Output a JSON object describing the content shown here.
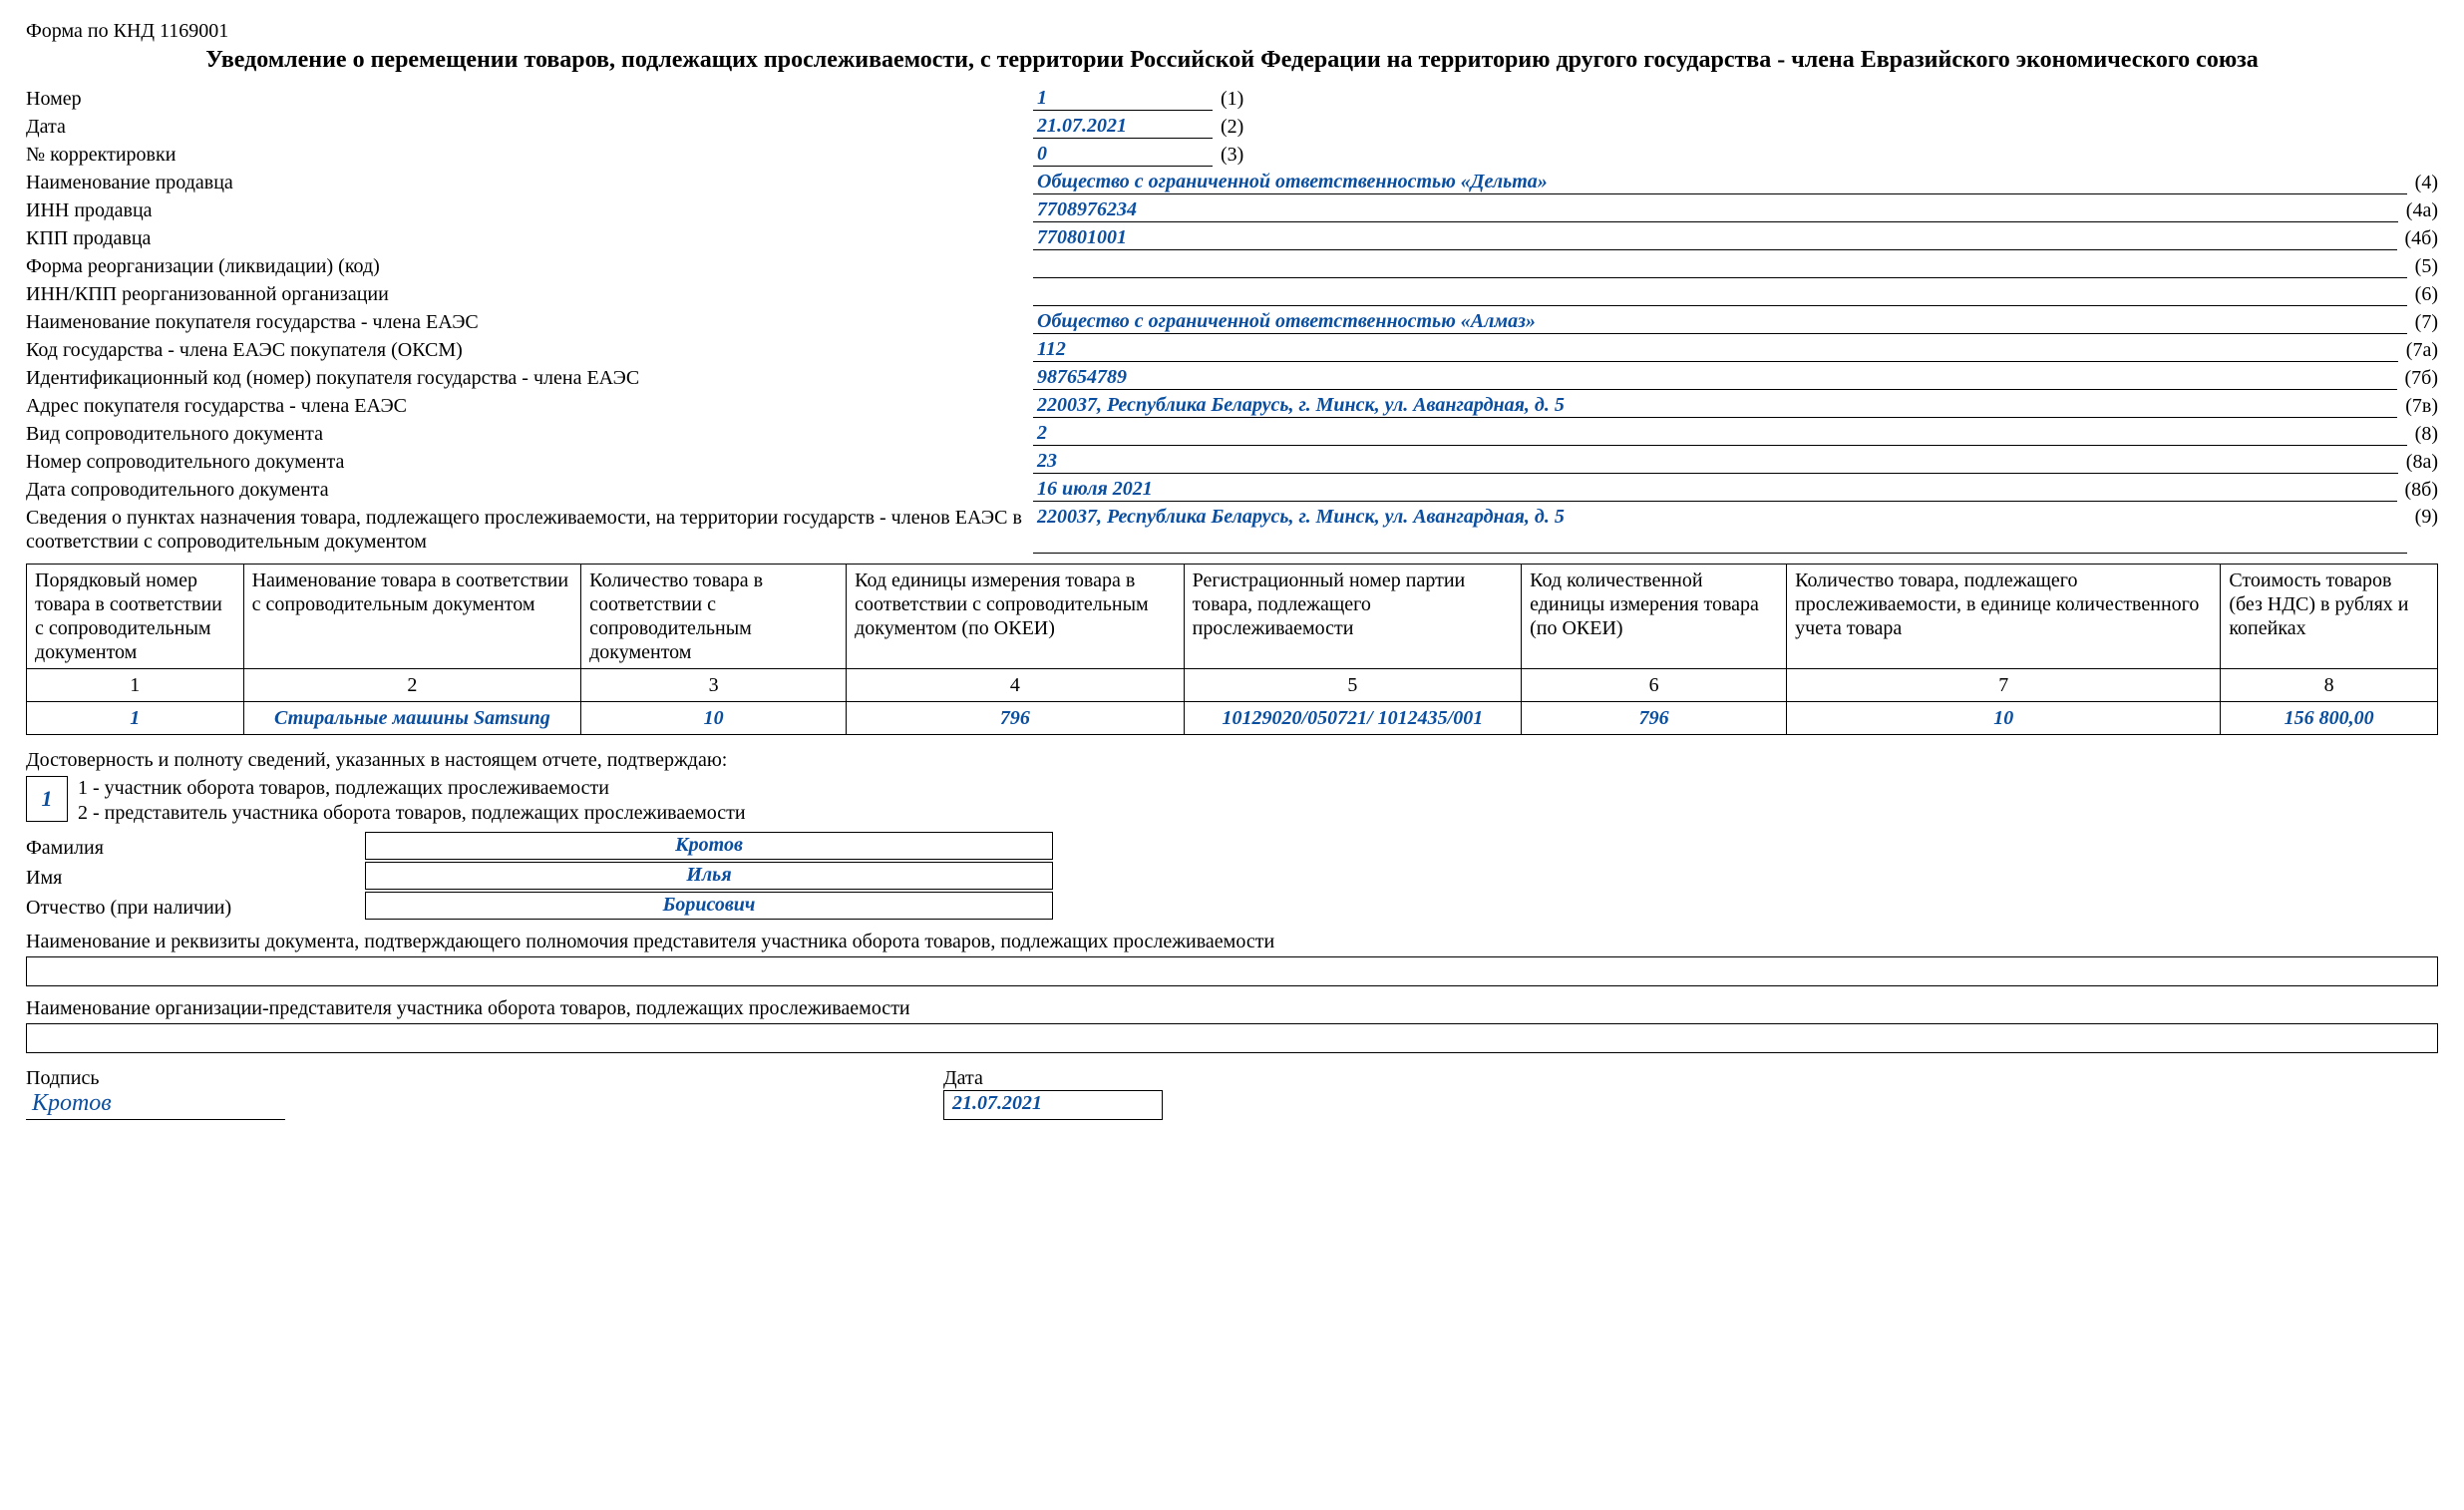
{
  "form_code": "Форма по КНД 1169001",
  "title": "Уведомление о перемещении товаров, подлежащих прослеживаемости, с территории Российской Федерации на территорию другого государства - члена Евразийского экономического союза",
  "fields": {
    "f1": {
      "label": "Номер",
      "value": "1",
      "tag": "(1)",
      "short": true
    },
    "f2": {
      "label": "Дата",
      "value": "21.07.2021",
      "tag": "(2)",
      "short": true
    },
    "f3": {
      "label": "№ корректировки",
      "value": "0",
      "tag": "(3)",
      "short": true
    },
    "f4": {
      "label": "Наименование продавца",
      "value": "Общество с ограниченной ответственностью «Дельта»",
      "tag": "(4)"
    },
    "f4a": {
      "label": "ИНН продавца",
      "value": "7708976234",
      "tag": "(4а)"
    },
    "f4b": {
      "label": "КПП продавца",
      "value": "770801001",
      "tag": "(4б)"
    },
    "f5": {
      "label": "Форма реорганизации (ликвидации) (код)",
      "value": "",
      "tag": "(5)"
    },
    "f6": {
      "label": "ИНН/КПП реорганизованной организации",
      "value": "",
      "tag": "(6)"
    },
    "f7": {
      "label": "Наименование покупателя государства - члена ЕАЭС",
      "value": "Общество с ограниченной ответственностью «Алмаз»",
      "tag": "(7)"
    },
    "f7a": {
      "label": "Код государства - члена ЕАЭС покупателя (ОКСМ)",
      "value": "112",
      "tag": "(7а)"
    },
    "f7b": {
      "label": "Идентификационный код (номер) покупателя государства - члена ЕАЭС",
      "value": "987654789",
      "tag": "(7б)"
    },
    "f7v": {
      "label": "Адрес покупателя государства - члена ЕАЭС",
      "value": "220037, Республика Беларусь, г. Минск, ул. Авангардная, д. 5",
      "tag": "(7в)"
    },
    "f8": {
      "label": "Вид сопроводительного документа",
      "value": "2",
      "tag": "(8)"
    },
    "f8a": {
      "label": "Номер сопроводительного документа",
      "value": "23",
      "tag": "(8а)"
    },
    "f8b": {
      "label": "Дата сопроводительного документа",
      "value": "16 июля 2021",
      "tag": "(8б)"
    },
    "f9": {
      "label": "Сведения о пунктах назначения товара, подлежащего прослеживаемости, на территории государств - членов ЕАЭС в соответствии с сопроводительным документом",
      "value": "220037, Республика Беларусь, г. Минск, ул. Авангард­ная, д. 5",
      "tag": "(9)"
    }
  },
  "table": {
    "headers": [
      "Порядковый номер товара в соответствии с сопроводи­тельным документом",
      "Наименование товара в соответствии с сопроводительным документом",
      "Количество товара в соответствии с сопроводительным документом",
      "Код единицы измерения товара в соответствии с сопроводительным доку­ментом (по ОКЕИ)",
      "Регистрационный номер партии товара, подлежащего прослеживаемости",
      "Код количественной единицы измерения товара (по ОКЕИ)",
      "Количество товара, подлежащего прослеживаемости, в единице количественного учета товара",
      "Стоимость товаров (без НДС) в рублях и копейках"
    ],
    "col_widths_pct": [
      9,
      14,
      11,
      14,
      14,
      11,
      18,
      9
    ],
    "numrow": [
      "1",
      "2",
      "3",
      "4",
      "5",
      "6",
      "7",
      "8"
    ],
    "rows": [
      {
        "c1": "1",
        "c2": "Стиральные машины Samsung",
        "c3": "10",
        "c4": "796",
        "c5": "10129020/050721/ 1012435/001",
        "c6": "796",
        "c7": "10",
        "c8": "156 800,00"
      }
    ]
  },
  "confirm": {
    "caption": "Достоверность и полноту сведений, указанных в настоящем отчете, подтверждаю:",
    "code": "1",
    "legend1": "1 - участник оборота товаров, подлежащих прослеживаемости",
    "legend2": "2 - представитель участника оборота товаров, подлежащих прослеживаемости",
    "last_name_label": "Фамилия",
    "last_name": "Кротов",
    "first_name_label": "Имя",
    "first_name": "Илья",
    "patronymic_label": "Отчество (при наличии)",
    "patronymic": "Борисович"
  },
  "auth_doc_caption": "Наименование и реквизиты документа, подтверждающего полномочия представителя участника оборота товаров, подлежащих прослеживаемости",
  "rep_org_caption": "Наименование организации-представителя участника оборота товаров, подлежащих прослеживаемости",
  "signature": {
    "sign_label": "Подпись",
    "sign_value": "Кротов",
    "date_label": "Дата",
    "date_value": "21.07.2021"
  },
  "colors": {
    "text": "#000000",
    "value": "#0a4ea0",
    "background": "#ffffff",
    "border": "#000000"
  }
}
